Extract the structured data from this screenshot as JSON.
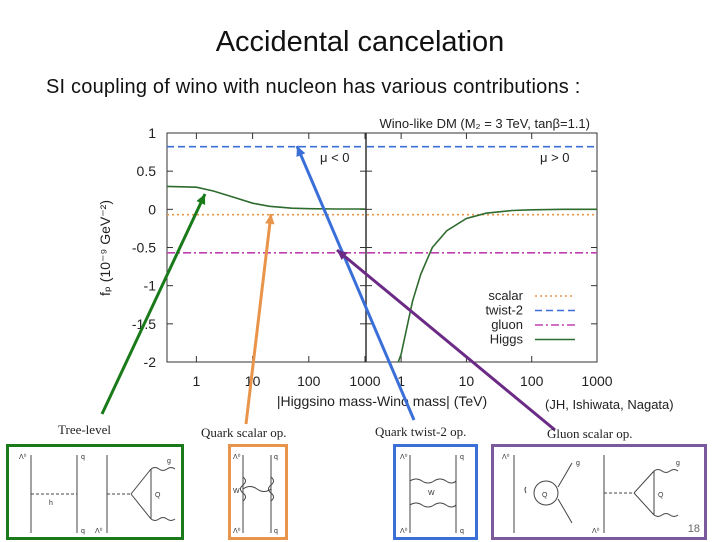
{
  "slide": {
    "title": "Accidental cancelation",
    "subtitle": "SI coupling of wino with nucleon has various contributions :",
    "credit": "(JH, Ishiwata, Nagata)",
    "page_number": "18"
  },
  "labels": {
    "tree": "Tree-level",
    "quark_scalar": "Quark scalar op.",
    "twist2": "Quark twist-2 op.",
    "gluon": "Gluon scalar op."
  },
  "colors": {
    "tree": "#1a7a1a",
    "quark_scalar": "#e8944a",
    "twist2": "#3a6fd8",
    "gluon": "#6b2a86"
  },
  "chart_data": {
    "type": "line",
    "title": "Wino-like DM (M₂ = 3 TeV, tanβ=1.1)",
    "xlabel": "|Higgsino mass-Wino mass| (TeV)",
    "ylabel": "fₚ (10⁻⁹ GeV⁻²)",
    "xscale": "log",
    "xlim": [
      0.3,
      1000
    ],
    "ylim": [
      -2,
      1
    ],
    "yticks": [
      "1",
      "0.5",
      "0",
      "-0.5",
      "-1",
      "-1.5",
      "-2"
    ],
    "ytick_values": [
      1,
      0.5,
      0,
      -0.5,
      -1,
      -1.5,
      -2
    ],
    "xticks": [
      "1",
      "10",
      "100",
      "1000"
    ],
    "xtick_values": [
      1,
      10,
      100,
      1000
    ],
    "panels": [
      "μ < 0",
      "μ > 0"
    ],
    "legend": {
      "position": "bottom-right",
      "entries": [
        "scalar",
        "twist-2",
        "gluon",
        "Higgs"
      ]
    },
    "series": [
      {
        "name": "scalar",
        "style": "dotted",
        "color": "#e8944a",
        "panel_left": {
          "x": [
            0.3,
            1000
          ],
          "y": [
            -0.07,
            -0.07
          ]
        },
        "panel_right": {
          "x": [
            0.3,
            1000
          ],
          "y": [
            -0.07,
            -0.07
          ]
        }
      },
      {
        "name": "twist-2",
        "style": "dashed",
        "color": "#3a6fd8",
        "panel_left": {
          "x": [
            0.3,
            1000
          ],
          "y": [
            0.82,
            0.82
          ]
        },
        "panel_right": {
          "x": [
            0.3,
            1000
          ],
          "y": [
            0.82,
            0.82
          ]
        }
      },
      {
        "name": "gluon",
        "style": "dashdot",
        "color": "#c040b0",
        "panel_left": {
          "x": [
            0.3,
            1000
          ],
          "y": [
            -0.57,
            -0.57
          ]
        },
        "panel_right": {
          "x": [
            0.3,
            1000
          ],
          "y": [
            -0.57,
            -0.57
          ]
        }
      },
      {
        "name": "Higgs",
        "style": "solid",
        "color": "#2e6b2e",
        "panel_left": {
          "x": [
            0.3,
            1,
            2,
            5,
            10,
            20,
            50,
            100,
            300,
            1000
          ],
          "y": [
            0.3,
            0.29,
            0.24,
            0.15,
            0.08,
            0.04,
            0.015,
            0.008,
            0.005,
            0.005
          ]
        },
        "panel_right": {
          "x": [
            0.9,
            1,
            1.5,
            2,
            3,
            5,
            10,
            20,
            50,
            100,
            300,
            1000
          ],
          "y": [
            -2,
            -1.9,
            -1.2,
            -0.85,
            -0.5,
            -0.28,
            -0.12,
            -0.05,
            -0.015,
            -0.006,
            0,
            0
          ]
        }
      }
    ]
  },
  "diagrams": {
    "tree": {
      "particles": [
        "Λ⁰",
        "q",
        "h",
        "Λ⁰",
        "q",
        "g",
        "Q"
      ]
    },
    "quark_scalar": {
      "particles": [
        "Λ⁰",
        "q",
        "W",
        "Λ⁰",
        "q"
      ]
    },
    "twist2": {
      "particles": [
        "Λ⁰",
        "q",
        "W",
        "Λ⁰",
        "q"
      ]
    },
    "gluon": {
      "particles": [
        "Λ⁰",
        "g",
        "Q",
        "Λ⁰",
        "g",
        "Q"
      ]
    }
  }
}
